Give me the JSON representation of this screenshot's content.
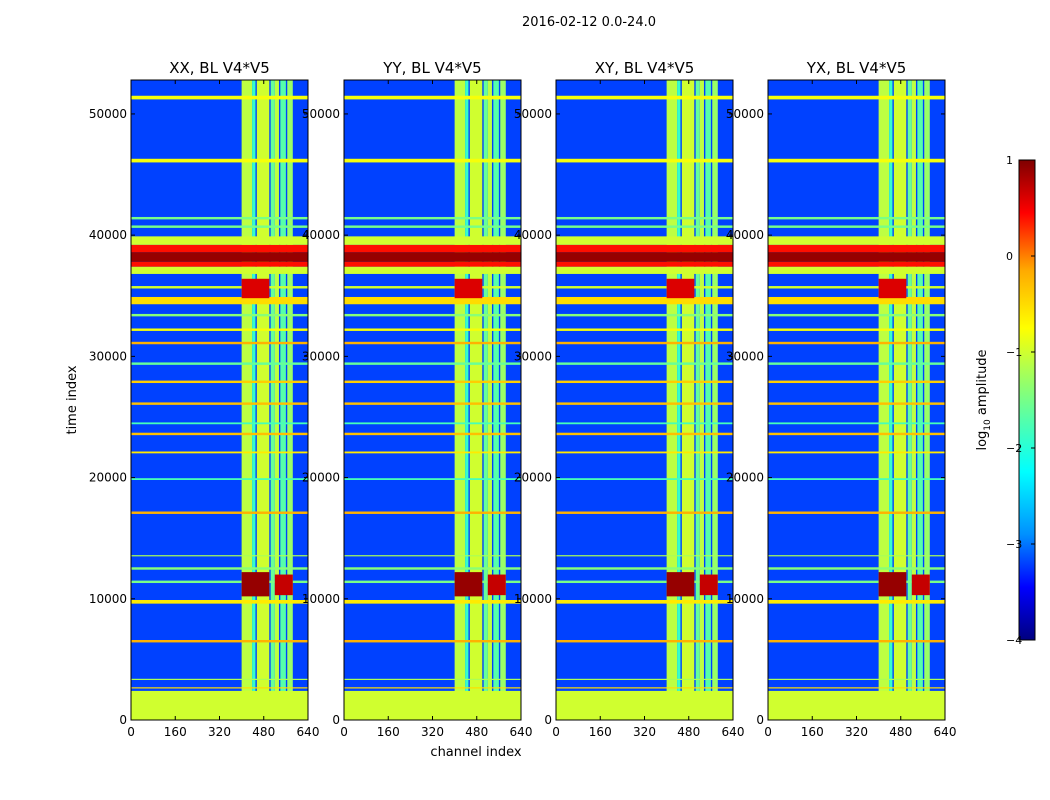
{
  "suptitle": "2016-02-12 0.0-24.0",
  "xlabel": "channel index",
  "ylabel": "time index",
  "colorbar": {
    "label_main": "log",
    "label_sub": "10",
    "label_tail": " amplitude",
    "ticks": [
      1,
      0,
      -1,
      -2,
      -3,
      -4
    ],
    "tick_labels": [
      "1",
      "0",
      "−1",
      "−2",
      "−3",
      "−4"
    ],
    "range": [
      -4,
      1
    ],
    "colors": {
      "c0": "#7f0000",
      "c1": "#ff0000",
      "c2": "#ffaa00",
      "c3": "#ffff00",
      "c4": "#aaff55",
      "c5": "#55ffaa",
      "c6": "#00ffff",
      "c7": "#0090ff",
      "c8": "#0000ff",
      "c9": "#00007f"
    }
  },
  "chart_data": {
    "type": "heatmap",
    "panels": [
      {
        "title": "XX, BL V4*V5"
      },
      {
        "title": "YY, BL V4*V5"
      },
      {
        "title": "XY, BL V4*V5"
      },
      {
        "title": "YX, BL V4*V5"
      }
    ],
    "x_ticks": [
      0,
      160,
      320,
      480,
      640
    ],
    "x_tick_labels": [
      "0",
      "160",
      "320",
      "480",
      "640"
    ],
    "y_ticks": [
      0,
      10000,
      20000,
      30000,
      40000,
      50000
    ],
    "y_tick_labels": [
      "0",
      "10000",
      "20000",
      "30000",
      "40000",
      "50000"
    ],
    "xlim": [
      0,
      640
    ],
    "ylim": [
      0,
      52800
    ],
    "background_log_amp": -3.2,
    "rfi_channel_bands": [
      {
        "x0": 400,
        "x1": 438,
        "log_amp": -1.1
      },
      {
        "x0": 438,
        "x1": 450,
        "log_amp": -1.9
      },
      {
        "x0": 455,
        "x1": 500,
        "log_amp": -1.0
      },
      {
        "x0": 505,
        "x1": 520,
        "log_amp": -1.6
      },
      {
        "x0": 520,
        "x1": 535,
        "log_amp": -1.1
      },
      {
        "x0": 540,
        "x1": 560,
        "log_amp": -1.7
      },
      {
        "x0": 565,
        "x1": 585,
        "log_amp": -1.3
      }
    ],
    "rfi_time_bands": [
      {
        "y0": 0,
        "y1": 2400,
        "log_amp": -1.0
      },
      {
        "y0": 2600,
        "y1": 2700,
        "log_amp": -0.5
      },
      {
        "y0": 3300,
        "y1": 3400,
        "log_amp": -1.2
      },
      {
        "y0": 6400,
        "y1": 6600,
        "log_amp": -0.2
      },
      {
        "y0": 9600,
        "y1": 9900,
        "log_amp": -0.6
      },
      {
        "y0": 11300,
        "y1": 11500,
        "log_amp": -1.5
      },
      {
        "y0": 12400,
        "y1": 12600,
        "log_amp": -1.4
      },
      {
        "y0": 13500,
        "y1": 13600,
        "log_amp": -1.2
      },
      {
        "y0": 17000,
        "y1": 17200,
        "log_amp": -0.2
      },
      {
        "y0": 19800,
        "y1": 19950,
        "log_amp": -1.8
      },
      {
        "y0": 22000,
        "y1": 22150,
        "log_amp": -0.6
      },
      {
        "y0": 23500,
        "y1": 23700,
        "log_amp": -0.3
      },
      {
        "y0": 24400,
        "y1": 24550,
        "log_amp": -1.8
      },
      {
        "y0": 26000,
        "y1": 26200,
        "log_amp": -0.3
      },
      {
        "y0": 27800,
        "y1": 28000,
        "log_amp": -0.4
      },
      {
        "y0": 29300,
        "y1": 29500,
        "log_amp": -1.6
      },
      {
        "y0": 31000,
        "y1": 31200,
        "log_amp": -0.2
      },
      {
        "y0": 32100,
        "y1": 32300,
        "log_amp": -0.8
      },
      {
        "y0": 33300,
        "y1": 33500,
        "log_amp": -1.4
      },
      {
        "y0": 34300,
        "y1": 34900,
        "log_amp": -0.5
      },
      {
        "y0": 35600,
        "y1": 35800,
        "log_amp": -1.0
      },
      {
        "y0": 36800,
        "y1": 37400,
        "log_amp": -1.0
      },
      {
        "y0": 37400,
        "y1": 37800,
        "log_amp": 0.4
      },
      {
        "y0": 37800,
        "y1": 38600,
        "log_amp": 0.9
      },
      {
        "y0": 38600,
        "y1": 39200,
        "log_amp": 0.4
      },
      {
        "y0": 39200,
        "y1": 39900,
        "log_amp": -1.0
      },
      {
        "y0": 40600,
        "y1": 40800,
        "log_amp": -1.5
      },
      {
        "y0": 41300,
        "y1": 41500,
        "log_amp": -1.5
      },
      {
        "y0": 46000,
        "y1": 46300,
        "log_amp": -0.8
      },
      {
        "y0": 51200,
        "y1": 51500,
        "log_amp": -0.8
      }
    ],
    "hot_spots": [
      {
        "x0": 400,
        "x1": 500,
        "y0": 10200,
        "y1": 12200,
        "log_amp": 0.9
      },
      {
        "x0": 520,
        "x1": 585,
        "y0": 10300,
        "y1": 12000,
        "log_amp": 0.7
      },
      {
        "x0": 400,
        "x1": 500,
        "y0": 34800,
        "y1": 36400,
        "log_amp": 0.6
      }
    ]
  }
}
